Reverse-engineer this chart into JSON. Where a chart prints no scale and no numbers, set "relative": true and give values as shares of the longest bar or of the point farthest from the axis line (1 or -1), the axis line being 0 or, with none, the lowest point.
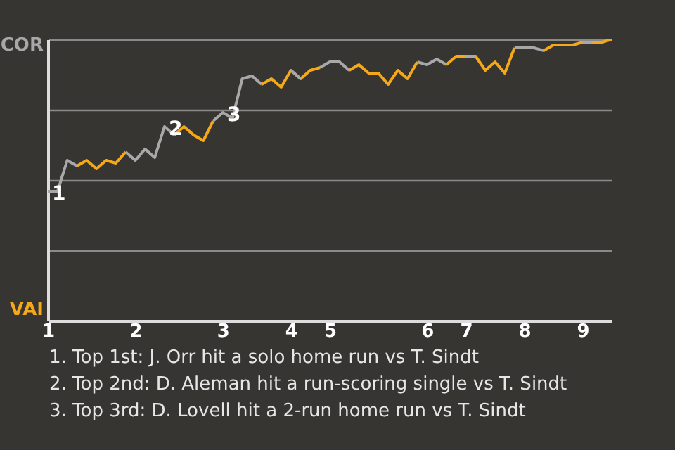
{
  "chart_data": {
    "type": "line",
    "relative": true,
    "categories": [
      "1",
      null,
      null,
      null,
      null,
      null,
      null,
      null,
      null,
      "2",
      null,
      null,
      null,
      null,
      null,
      null,
      null,
      null,
      "3",
      null,
      null,
      null,
      null,
      null,
      null,
      "4",
      null,
      null,
      null,
      "5",
      null,
      null,
      null,
      null,
      null,
      null,
      null,
      null,
      null,
      "6",
      null,
      null,
      null,
      "7",
      null,
      null,
      null,
      null,
      null,
      "8",
      null,
      null,
      null,
      null,
      null,
      "9",
      null,
      null,
      null
    ],
    "series": [
      {
        "color": "#a8a8a8",
        "values": [
          0.46,
          0.46,
          0.57,
          0.55,
          null,
          null,
          null,
          null,
          0.6,
          0.57,
          0.61,
          0.58,
          0.69,
          0.66,
          null,
          null,
          null,
          0.71,
          0.74,
          0.72,
          0.86,
          0.87,
          0.84,
          null,
          null,
          0.89,
          0.86,
          null,
          0.9,
          0.92,
          0.92,
          0.89,
          null,
          null,
          null,
          null,
          null,
          null,
          0.92,
          0.91,
          0.93,
          0.91,
          null,
          0.94,
          0.94,
          null,
          null,
          null,
          0.97,
          0.97,
          0.97,
          0.96,
          null,
          null,
          null,
          0.99,
          0.99,
          null,
          null
        ]
      },
      {
        "color": "#f5a818",
        "values": [
          null,
          null,
          null,
          0.55,
          0.57,
          0.54,
          0.57,
          0.56,
          0.6,
          null,
          null,
          null,
          null,
          0.66,
          0.69,
          0.66,
          0.64,
          0.71,
          null,
          null,
          null,
          null,
          0.84,
          0.86,
          0.83,
          0.89,
          0.86,
          0.89,
          0.9,
          null,
          null,
          0.89,
          0.91,
          0.88,
          0.88,
          0.84,
          0.89,
          0.86,
          0.92,
          null,
          null,
          0.91,
          0.94,
          0.94,
          0.94,
          0.89,
          0.92,
          0.88,
          0.97,
          null,
          null,
          0.96,
          0.98,
          0.98,
          0.98,
          0.99,
          0.99,
          0.99,
          1
        ]
      }
    ],
    "grid": "y",
    "annotations": [
      {
        "text": "1",
        "y": 0.46
      },
      {
        "text": "2",
        "y": 0.69
      },
      {
        "text": "3",
        "x": "3",
        "y": 0.74
      },
      "COR",
      "VAI",
      "1. Top 1st: J. Orr hit a solo home run vs T. Sindt",
      "2. Top 2nd: D. Aleman hit a run-scoring single vs T. Sindt",
      "3. Top 3rd: D. Lovell hit a 2-run home run vs T. Sindt"
    ],
    "line_style": "solid",
    "marker": "none"
  }
}
